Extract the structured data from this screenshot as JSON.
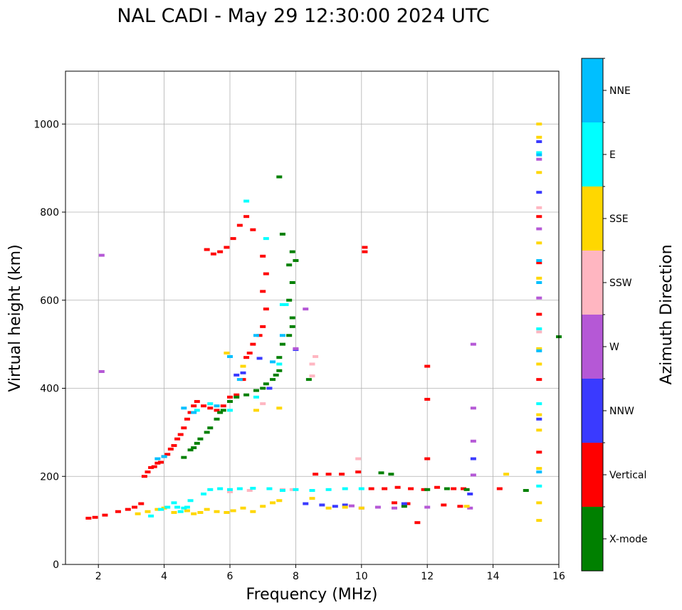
{
  "chart_data": {
    "type": "scatter",
    "title": "NAL CADI - May 29 12:30:00 2024 UTC",
    "xlabel": "Frequency (MHz)",
    "ylabel": "Virtual height (km)",
    "xlim": [
      1.0,
      16.0
    ],
    "ylim": [
      0,
      1120
    ],
    "grid": true,
    "x_ticks": [
      2,
      4,
      6,
      8,
      10,
      12,
      14,
      16
    ],
    "y_ticks": [
      0,
      200,
      400,
      600,
      800,
      1000
    ],
    "x_tick_labels": [
      "2",
      "4",
      "6",
      "8",
      "10",
      "12",
      "14",
      "16"
    ],
    "y_tick_labels": [
      "0",
      "200",
      "400",
      "600",
      "800",
      "1000"
    ],
    "colorbar": {
      "label": "Azimuth Direction",
      "categories": [
        {
          "name": "X-mode",
          "color": "#008000"
        },
        {
          "name": "Vertical",
          "color": "#ff0000"
        },
        {
          "name": "NNW",
          "color": "#3a3aff"
        },
        {
          "name": "W",
          "color": "#b558d6"
        },
        {
          "name": "SSW",
          "color": "#ffb6c1"
        },
        {
          "name": "SSE",
          "color": "#ffd700"
        },
        {
          "name": "E",
          "color": "#00ffff"
        },
        {
          "name": "NNE",
          "color": "#00bfff"
        }
      ]
    },
    "series": [
      {
        "name": "Vertical",
        "points": [
          [
            1.7,
            105
          ],
          [
            1.9,
            107
          ],
          [
            2.2,
            112
          ],
          [
            2.6,
            120
          ],
          [
            2.9,
            125
          ],
          [
            3.1,
            130
          ],
          [
            3.3,
            138
          ],
          [
            3.4,
            200
          ],
          [
            3.5,
            210
          ],
          [
            3.6,
            220
          ],
          [
            3.7,
            222
          ],
          [
            3.8,
            230
          ],
          [
            3.9,
            232
          ],
          [
            4.0,
            245
          ],
          [
            4.1,
            250
          ],
          [
            4.2,
            262
          ],
          [
            4.3,
            270
          ],
          [
            4.4,
            285
          ],
          [
            4.5,
            295
          ],
          [
            4.6,
            310
          ],
          [
            4.7,
            330
          ],
          [
            4.8,
            345
          ],
          [
            4.9,
            360
          ],
          [
            5.0,
            370
          ],
          [
            5.2,
            360
          ],
          [
            5.4,
            355
          ],
          [
            5.6,
            350
          ],
          [
            5.8,
            360
          ],
          [
            6.0,
            380
          ],
          [
            6.2,
            385
          ],
          [
            6.4,
            420
          ],
          [
            6.5,
            470
          ],
          [
            6.6,
            480
          ],
          [
            6.7,
            500
          ],
          [
            6.9,
            520
          ],
          [
            7.0,
            540
          ],
          [
            7.1,
            580
          ],
          [
            7.0,
            620
          ],
          [
            7.1,
            660
          ],
          [
            7.0,
            700
          ],
          [
            6.7,
            760
          ],
          [
            6.5,
            790
          ],
          [
            6.3,
            770
          ],
          [
            6.1,
            740
          ],
          [
            5.9,
            720
          ],
          [
            5.7,
            710
          ],
          [
            5.5,
            705
          ],
          [
            5.3,
            715
          ],
          [
            10.1,
            710
          ],
          [
            10.1,
            720
          ],
          [
            12.0,
            450
          ],
          [
            12.0,
            375
          ],
          [
            12.0,
            240
          ],
          [
            8.6,
            205
          ],
          [
            9.0,
            205
          ],
          [
            9.4,
            205
          ],
          [
            9.9,
            210
          ],
          [
            10.3,
            172
          ],
          [
            10.7,
            172
          ],
          [
            11.1,
            175
          ],
          [
            11.5,
            172
          ],
          [
            11.9,
            170
          ],
          [
            12.3,
            175
          ],
          [
            12.8,
            172
          ],
          [
            13.1,
            172
          ],
          [
            11.0,
            140
          ],
          [
            11.4,
            138
          ],
          [
            11.7,
            95
          ],
          [
            12.5,
            135
          ],
          [
            13.0,
            132
          ],
          [
            14.2,
            172
          ],
          [
            15.4,
            568
          ],
          [
            15.4,
            420
          ],
          [
            15.4,
            255
          ],
          [
            15.4,
            790
          ],
          [
            15.4,
            685
          ]
        ]
      },
      {
        "name": "X-mode",
        "points": [
          [
            4.8,
            260
          ],
          [
            4.9,
            265
          ],
          [
            5.0,
            275
          ],
          [
            5.1,
            285
          ],
          [
            5.3,
            300
          ],
          [
            5.4,
            310
          ],
          [
            5.6,
            330
          ],
          [
            5.7,
            345
          ],
          [
            5.8,
            350
          ],
          [
            6.0,
            370
          ],
          [
            6.2,
            380
          ],
          [
            6.5,
            385
          ],
          [
            6.8,
            395
          ],
          [
            7.0,
            400
          ],
          [
            7.1,
            410
          ],
          [
            7.3,
            420
          ],
          [
            7.4,
            430
          ],
          [
            7.5,
            440
          ],
          [
            7.5,
            470
          ],
          [
            7.6,
            500
          ],
          [
            7.8,
            520
          ],
          [
            7.9,
            540
          ],
          [
            7.9,
            560
          ],
          [
            7.8,
            600
          ],
          [
            7.9,
            640
          ],
          [
            7.8,
            680
          ],
          [
            8.0,
            690
          ],
          [
            7.9,
            710
          ],
          [
            7.6,
            750
          ],
          [
            7.5,
            880
          ],
          [
            8.4,
            420
          ],
          [
            10.6,
            208
          ],
          [
            10.9,
            205
          ],
          [
            12.0,
            170
          ],
          [
            12.6,
            172
          ],
          [
            13.2,
            170
          ],
          [
            15.0,
            168
          ],
          [
            16.0,
            517
          ],
          [
            11.3,
            132
          ],
          [
            4.6,
            243
          ]
        ]
      },
      {
        "name": "NNW",
        "points": [
          [
            6.4,
            435
          ],
          [
            6.2,
            430
          ],
          [
            6.9,
            468
          ],
          [
            7.2,
            400
          ],
          [
            8.0,
            488
          ],
          [
            8.3,
            138
          ],
          [
            8.8,
            135
          ],
          [
            9.2,
            132
          ],
          [
            9.5,
            135
          ],
          [
            11.3,
            138
          ],
          [
            13.3,
            160
          ],
          [
            13.4,
            240
          ],
          [
            15.4,
            960
          ],
          [
            15.4,
            845
          ],
          [
            15.4,
            330
          ]
        ]
      },
      {
        "name": "W",
        "points": [
          [
            2.1,
            438
          ],
          [
            2.1,
            702
          ],
          [
            8.3,
            580
          ],
          [
            8.0,
            490
          ],
          [
            9.7,
            133
          ],
          [
            10.0,
            128
          ],
          [
            10.5,
            130
          ],
          [
            11.0,
            128
          ],
          [
            12.0,
            130
          ],
          [
            13.3,
            128
          ],
          [
            13.4,
            500
          ],
          [
            13.4,
            355
          ],
          [
            13.4,
            280
          ],
          [
            13.4,
            203
          ],
          [
            15.4,
            920
          ],
          [
            15.4,
            762
          ],
          [
            15.4,
            605
          ]
        ]
      },
      {
        "name": "SSW",
        "points": [
          [
            8.5,
            455
          ],
          [
            8.6,
            472
          ],
          [
            8.5,
            428
          ],
          [
            7.6,
            170
          ],
          [
            7.9,
            170
          ],
          [
            6.6,
            168
          ],
          [
            6.0,
            165
          ],
          [
            7.0,
            365
          ],
          [
            9.9,
            240
          ],
          [
            15.4,
            810
          ],
          [
            15.4,
            528
          ]
        ]
      },
      {
        "name": "SSE",
        "points": [
          [
            3.2,
            115
          ],
          [
            3.5,
            120
          ],
          [
            3.8,
            125
          ],
          [
            4.0,
            128
          ],
          [
            4.3,
            118
          ],
          [
            4.7,
            122
          ],
          [
            4.9,
            115
          ],
          [
            5.1,
            118
          ],
          [
            5.3,
            125
          ],
          [
            5.6,
            120
          ],
          [
            5.9,
            118
          ],
          [
            6.1,
            122
          ],
          [
            6.4,
            128
          ],
          [
            6.7,
            120
          ],
          [
            7.0,
            132
          ],
          [
            7.3,
            140
          ],
          [
            7.5,
            145
          ],
          [
            5.9,
            480
          ],
          [
            6.4,
            450
          ],
          [
            6.8,
            350
          ],
          [
            7.5,
            355
          ],
          [
            8.5,
            150
          ],
          [
            9.0,
            128
          ],
          [
            9.5,
            130
          ],
          [
            10.0,
            128
          ],
          [
            13.2,
            132
          ],
          [
            14.4,
            205
          ],
          [
            15.4,
            1000
          ],
          [
            15.4,
            970
          ],
          [
            15.4,
            890
          ],
          [
            15.4,
            730
          ],
          [
            15.4,
            650
          ],
          [
            15.4,
            490
          ],
          [
            15.4,
            455
          ],
          [
            15.4,
            340
          ],
          [
            15.4,
            305
          ],
          [
            15.4,
            218
          ],
          [
            15.4,
            140
          ],
          [
            15.4,
            100
          ]
        ]
      },
      {
        "name": "E",
        "points": [
          [
            3.6,
            110
          ],
          [
            3.9,
            125
          ],
          [
            4.1,
            130
          ],
          [
            4.3,
            140
          ],
          [
            4.5,
            120
          ],
          [
            4.7,
            130
          ],
          [
            4.8,
            145
          ],
          [
            5.2,
            160
          ],
          [
            5.4,
            170
          ],
          [
            5.7,
            172
          ],
          [
            6.0,
            170
          ],
          [
            6.3,
            172
          ],
          [
            6.7,
            173
          ],
          [
            7.2,
            172
          ],
          [
            7.6,
            168
          ],
          [
            8.0,
            170
          ],
          [
            8.5,
            168
          ],
          [
            9.0,
            170
          ],
          [
            9.5,
            172
          ],
          [
            10.0,
            172
          ],
          [
            5.0,
            350
          ],
          [
            5.4,
            365
          ],
          [
            6.0,
            350
          ],
          [
            6.8,
            380
          ],
          [
            7.5,
            455
          ],
          [
            7.7,
            590
          ],
          [
            6.5,
            825
          ],
          [
            7.1,
            740
          ],
          [
            7.6,
            590
          ],
          [
            15.4,
            935
          ],
          [
            15.4,
            535
          ],
          [
            15.4,
            365
          ],
          [
            15.4,
            178
          ],
          [
            4.4,
            130
          ],
          [
            4.6,
            128
          ]
        ]
      },
      {
        "name": "NNE",
        "points": [
          [
            3.8,
            240
          ],
          [
            4.0,
            245
          ],
          [
            4.6,
            355
          ],
          [
            4.9,
            345
          ],
          [
            5.6,
            360
          ],
          [
            6.3,
            420
          ],
          [
            6.8,
            520
          ],
          [
            7.3,
            460
          ],
          [
            7.6,
            520
          ],
          [
            6.0,
            472
          ],
          [
            15.4,
            930
          ],
          [
            15.4,
            690
          ],
          [
            15.4,
            640
          ],
          [
            15.4,
            485
          ],
          [
            15.4,
            210
          ]
        ]
      }
    ]
  }
}
